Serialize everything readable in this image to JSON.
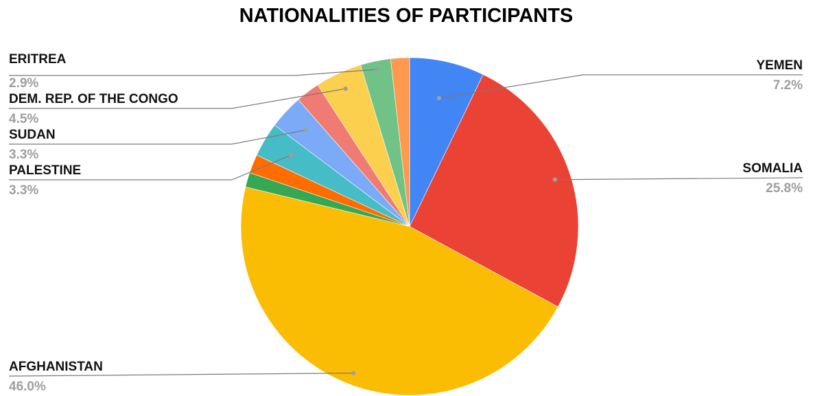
{
  "chart_data": {
    "type": "pie",
    "title": "NATIONALITIES OF PARTICIPANTS",
    "slices": [
      {
        "label": "YEMEN",
        "value": 7.2,
        "value_label": "7.2%",
        "color": "#4285f4",
        "labeled": true
      },
      {
        "label": "SOMALIA",
        "value": 25.8,
        "value_label": "25.8%",
        "color": "#ea4335",
        "labeled": true
      },
      {
        "label": "AFGHANISTAN",
        "value": 46.0,
        "value_label": "46.0%",
        "color": "#fbbc04",
        "labeled": true
      },
      {
        "label": "",
        "value": 1.4,
        "value_label": "",
        "color": "#34a853",
        "labeled": false
      },
      {
        "label": "",
        "value": 1.8,
        "value_label": "",
        "color": "#ff6d01",
        "labeled": false
      },
      {
        "label": "PALESTINE",
        "value": 3.3,
        "value_label": "3.3%",
        "color": "#46bdc6",
        "labeled": true
      },
      {
        "label": "SUDAN",
        "value": 3.3,
        "value_label": "3.3%",
        "color": "#7baaf7",
        "labeled": true
      },
      {
        "label": "",
        "value": 2.3,
        "value_label": "",
        "color": "#f07b72",
        "labeled": false
      },
      {
        "label": "DEM. REP. OF THE CONGO",
        "value": 4.5,
        "value_label": "4.5%",
        "color": "#fcd04f",
        "labeled": true
      },
      {
        "label": "ERITREA",
        "value": 2.9,
        "value_label": "2.9%",
        "color": "#71c287",
        "labeled": true
      },
      {
        "label": "",
        "value": 1.8,
        "value_label": "",
        "color": "#ff994d",
        "labeled": false
      }
    ],
    "start_angle_deg": 0,
    "direction": "clockwise",
    "legend": "none"
  }
}
